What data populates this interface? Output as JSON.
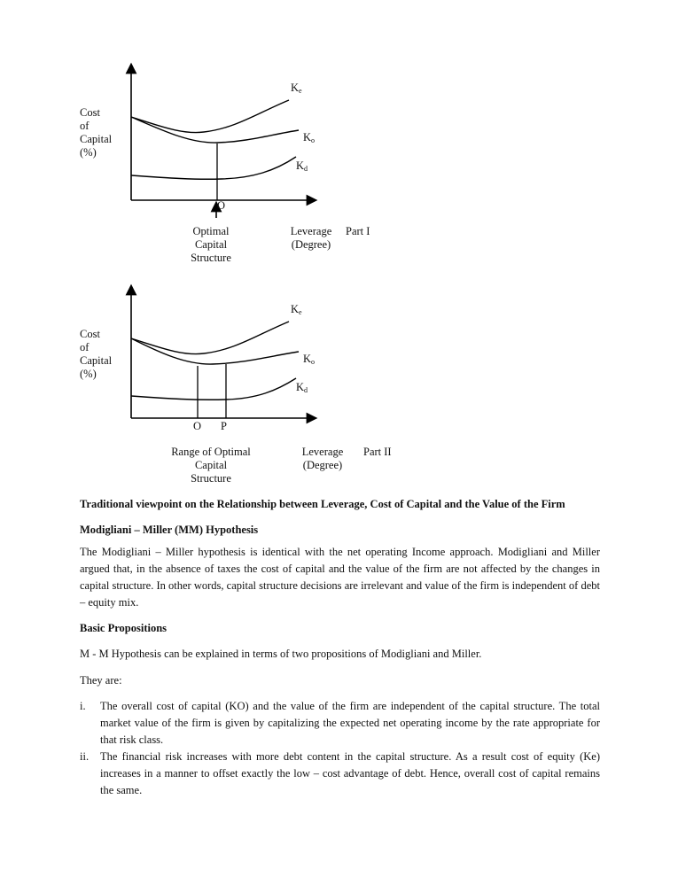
{
  "diagram1": {
    "y_label": [
      "Cost",
      "of",
      "Capital",
      "(%)"
    ],
    "curves": {
      "ke": "K",
      "ke_sub": "e",
      "ko": "K",
      "ko_sub": "o",
      "kd": "K",
      "kd_sub": "d"
    },
    "point_o": "O",
    "optimal_label": [
      "Optimal",
      "Capital",
      "Structure"
    ],
    "x_label": [
      "Leverage",
      "(Degree)"
    ],
    "part": "Part I"
  },
  "diagram2": {
    "y_label": [
      "Cost",
      "of",
      "Capital",
      "(%)"
    ],
    "curves": {
      "ke": "K",
      "ke_sub": "e",
      "ko": "K",
      "ko_sub": "o",
      "kd": "K",
      "kd_sub": "d"
    },
    "point_o": "O",
    "point_p": "P",
    "optimal_label": [
      "Range of Optimal",
      "Capital",
      "Structure"
    ],
    "x_label": [
      "Leverage",
      "(Degree)"
    ],
    "part": "Part II"
  },
  "caption": "Traditional viewpoint on the Relationship between Leverage, Cost of Capital and the Value of the Firm",
  "heading_mm": "Modigliani – Miller (MM) Hypothesis",
  "para_mm": "The Modigliani – Miller hypothesis is identical with the net operating Income approach. Modigliani and Miller argued that, in the absence of taxes the cost of capital and the value of the firm are not affected by the changes in capital structure. In other words, capital structure decisions are irrelevant and value of the firm is independent of debt – equity mix.",
  "heading_basic": "Basic Propositions",
  "para_basic": "M - M Hypothesis can be explained in terms of two propositions of Modigliani and Miller.",
  "they_are": "They are:",
  "propositions": [
    {
      "num": "i.",
      "text": "The overall cost of capital (KO) and the value of the firm are independent of the capital structure. The total market value of the firm is given by capitalizing the expected net operating income by the rate appropriate for that risk class."
    },
    {
      "num": "ii.",
      "text": "The financial risk increases with more debt content in the capital structure. As a result cost of equity (Ke) increases in a manner to offset exactly the low – cost advantage of debt. Hence, overall cost of capital remains the same."
    }
  ]
}
